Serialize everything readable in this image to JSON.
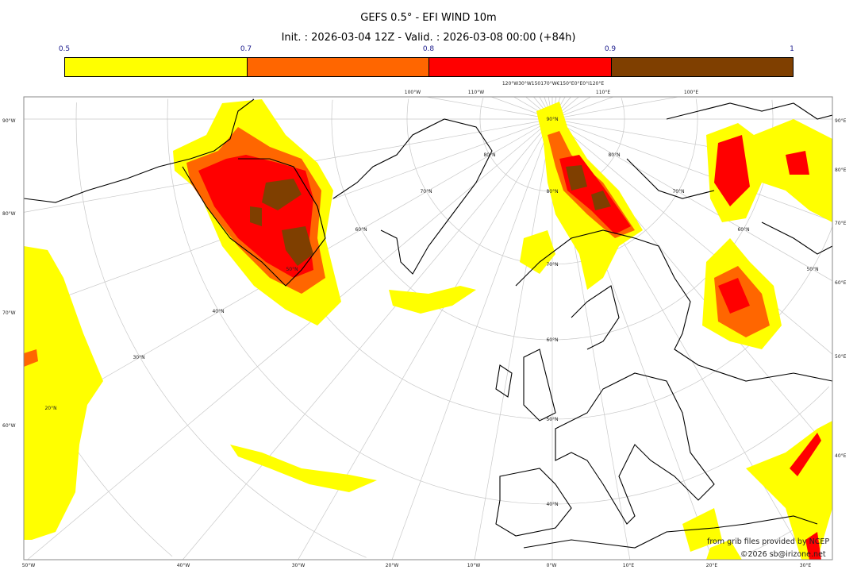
{
  "title": "GEFS 0.5° - EFI WIND 10m",
  "subtitle": "Init. : 2026-03-04 12Z - Valid. : 2026-03-08 00:00 (+84h)",
  "colorbar": {
    "ticks": [
      "0.5",
      "0.7",
      "0.8",
      "0.9",
      "1"
    ],
    "colors": [
      "#ffff00",
      "#ff6600",
      "#ff0000",
      "#7f3f00"
    ]
  },
  "map": {
    "projection": "polar stereographic",
    "left_labels": [
      "90°W",
      "80°W",
      "70°W",
      "60°W"
    ],
    "right_labels": [
      "90°E",
      "80°E",
      "70°E",
      "60°E",
      "50°E",
      "40°E"
    ],
    "bottom_labels": [
      "50°W",
      "40°W",
      "30°W",
      "20°W",
      "10°W",
      "0°W",
      "10°E",
      "20°E",
      "30°E"
    ],
    "top_labels": [
      "100°W",
      "110°W",
      "120°W30°W150170°W€150°E0°E0°I120°E",
      "110°E",
      "100°E"
    ],
    "lat_labels": [
      "90°N",
      "80°N",
      "70°N",
      "60°N",
      "50°N",
      "40°N",
      "80°N",
      "70°N",
      "60°N",
      "50°N",
      "40°N",
      "30°N",
      "20°N",
      "80°N",
      "70°N",
      "60°N",
      "50°N"
    ],
    "credit_source": "from grib files provided by NCEP",
    "credit_copyright": "©2026 sb@irizone.net"
  }
}
